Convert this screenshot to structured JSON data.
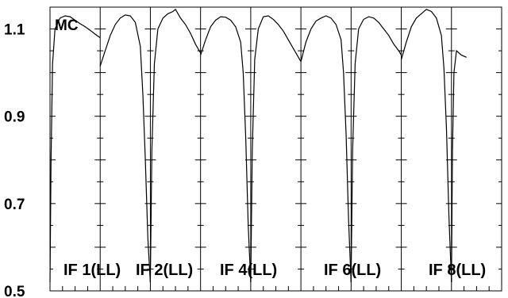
{
  "chart_data": {
    "type": "line",
    "title": "",
    "corner_label": "MC",
    "xlabel": "",
    "ylabel": "",
    "ylim": [
      0.5,
      1.15
    ],
    "yticks": [
      0.5,
      0.7,
      0.9,
      1.1
    ],
    "ytick_labels": [
      "0.5",
      "0.7",
      "0.9",
      "1.1"
    ],
    "grid": false,
    "panel_count": 9,
    "panel_labels": [
      "IF 1(LL)",
      "IF 2(LL)",
      "IF 4(LL)",
      "IF 6(LL)",
      "IF 8(LL)"
    ],
    "panels": [
      {
        "x": [
          0,
          0.02,
          0.05,
          0.1,
          0.2,
          0.3,
          0.4,
          0.5,
          0.6,
          0.7,
          0.8,
          0.9,
          1.0
        ],
        "y": [
          0.52,
          0.8,
          1.02,
          1.1,
          1.125,
          1.13,
          1.128,
          1.12,
          1.112,
          1.105,
          1.097,
          1.088,
          1.08
        ]
      },
      {
        "x": [
          0,
          0.1,
          0.2,
          0.3,
          0.4,
          0.5,
          0.6,
          0.7,
          0.8,
          0.85,
          0.9,
          0.95,
          1.0
        ],
        "y": [
          1.015,
          1.05,
          1.085,
          1.11,
          1.125,
          1.132,
          1.13,
          1.115,
          1.06,
          0.95,
          0.8,
          0.62,
          0.52
        ]
      },
      {
        "x": [
          0,
          0.03,
          0.08,
          0.15,
          0.25,
          0.35,
          0.45,
          0.5,
          0.6,
          0.7,
          0.8,
          0.9,
          1.0
        ],
        "y": [
          0.52,
          0.82,
          1.02,
          1.1,
          1.125,
          1.135,
          1.14,
          1.145,
          1.125,
          1.11,
          1.09,
          1.065,
          1.045
        ]
      },
      {
        "x": [
          0,
          0.1,
          0.2,
          0.3,
          0.4,
          0.5,
          0.6,
          0.7,
          0.8,
          0.85,
          0.9,
          0.95,
          1.0
        ],
        "y": [
          1.04,
          1.075,
          1.105,
          1.12,
          1.128,
          1.127,
          1.12,
          1.105,
          1.07,
          1.0,
          0.85,
          0.65,
          0.52
        ]
      },
      {
        "x": [
          0,
          0.03,
          0.08,
          0.15,
          0.25,
          0.35,
          0.45,
          0.55,
          0.65,
          0.75,
          0.85,
          0.95,
          1.0
        ],
        "y": [
          0.52,
          0.82,
          1.03,
          1.1,
          1.128,
          1.13,
          1.122,
          1.11,
          1.095,
          1.075,
          1.055,
          1.035,
          1.025
        ]
      },
      {
        "x": [
          0,
          0.1,
          0.2,
          0.3,
          0.4,
          0.5,
          0.6,
          0.7,
          0.8,
          0.85,
          0.9,
          0.95,
          1.0
        ],
        "y": [
          1.025,
          1.07,
          1.1,
          1.118,
          1.125,
          1.13,
          1.125,
          1.11,
          1.075,
          1.0,
          0.86,
          0.66,
          0.52
        ]
      },
      {
        "x": [
          0,
          0.03,
          0.08,
          0.15,
          0.25,
          0.35,
          0.45,
          0.55,
          0.65,
          0.75,
          0.85,
          0.95,
          1.0
        ],
        "y": [
          0.52,
          0.82,
          1.02,
          1.1,
          1.122,
          1.128,
          1.125,
          1.115,
          1.1,
          1.085,
          1.065,
          1.05,
          1.04
        ]
      },
      {
        "x": [
          0,
          0.1,
          0.2,
          0.3,
          0.4,
          0.5,
          0.6,
          0.7,
          0.8,
          0.85,
          0.9,
          0.95,
          1.0
        ],
        "y": [
          1.03,
          1.07,
          1.105,
          1.125,
          1.135,
          1.145,
          1.14,
          1.125,
          1.085,
          1.01,
          0.87,
          0.67,
          0.52
        ]
      },
      {
        "x": [
          0,
          0.02,
          0.05,
          0.1,
          0.2,
          0.3
        ],
        "y": [
          0.52,
          0.82,
          1.0,
          1.05,
          1.04,
          1.035
        ]
      }
    ]
  }
}
